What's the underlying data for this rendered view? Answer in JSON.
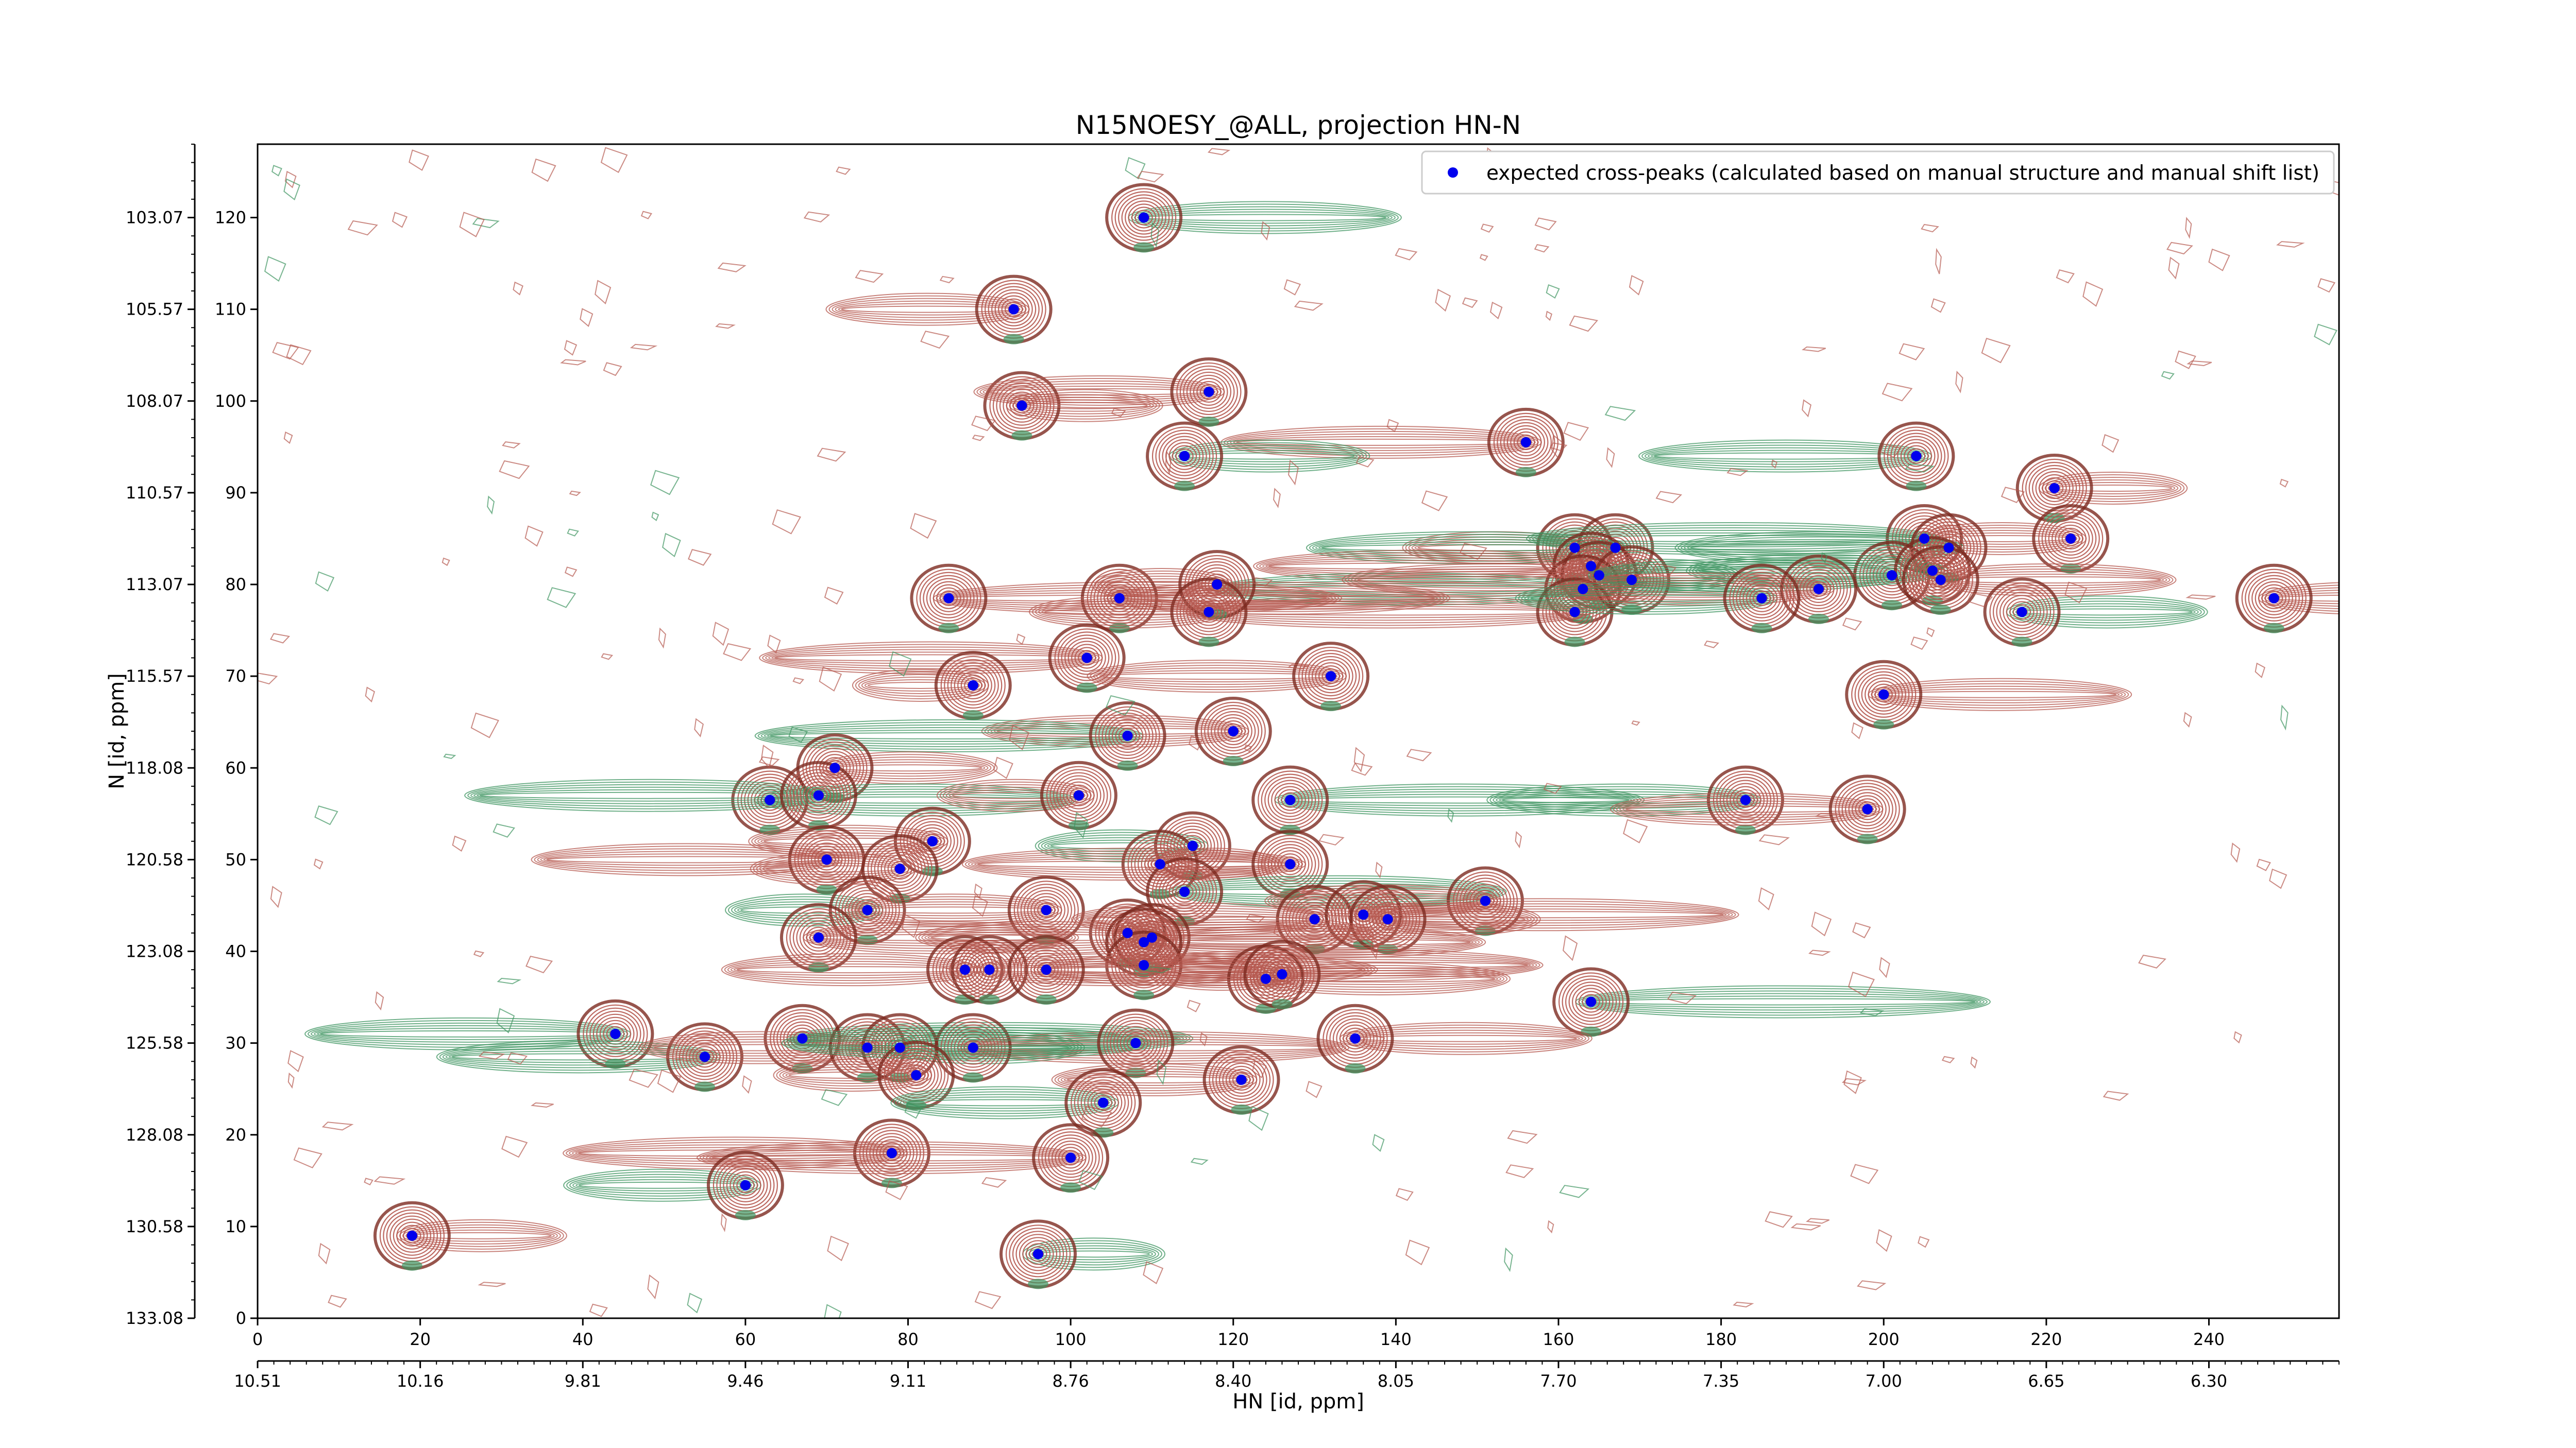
{
  "chart_data": {
    "type": "scatter",
    "title": "N15NOESY_@ALL, projection HN-N",
    "xlabel": "HN [id, ppm]",
    "ylabel": "N [id, ppm]",
    "x_index_range": [
      0,
      256
    ],
    "y_index_range": [
      0,
      128
    ],
    "x_index_ticks": [
      "0",
      "20",
      "40",
      "60",
      "80",
      "100",
      "120",
      "140",
      "160",
      "180",
      "200",
      "220",
      "240"
    ],
    "x_ppm_ticks": [
      "10.51",
      "10.16",
      "9.81",
      "9.46",
      "9.11",
      "8.76",
      "8.40",
      "8.05",
      "7.70",
      "7.35",
      "7.00",
      "6.65",
      "6.30"
    ],
    "y_index_ticks": [
      "0",
      "10",
      "20",
      "30",
      "40",
      "50",
      "60",
      "70",
      "80",
      "90",
      "100",
      "110",
      "120"
    ],
    "y_ppm_ticks": [
      "133.08",
      "130.58",
      "128.08",
      "125.58",
      "123.08",
      "120.58",
      "118.08",
      "115.57",
      "113.07",
      "110.57",
      "108.07",
      "105.57",
      "103.07"
    ],
    "legend": {
      "placement": "top-right",
      "label": "expected cross-peaks (calculated based on manual structure and manual shift list)"
    },
    "colors": {
      "expected_peak": "#0000ee",
      "positive_contour": "#b5584f",
      "negative_contour": "#3d9460"
    },
    "series": [
      {
        "name": "expected cross-peaks (calculated based on manual structure and manual shift list)",
        "points": [
          [
            109,
            120
          ],
          [
            93,
            110
          ],
          [
            94,
            99.5
          ],
          [
            117,
            101
          ],
          [
            156,
            95.5
          ],
          [
            114,
            94
          ],
          [
            204,
            94
          ],
          [
            221,
            90.5
          ],
          [
            223,
            85
          ],
          [
            162,
            84
          ],
          [
            167,
            84
          ],
          [
            205,
            85
          ],
          [
            208,
            84
          ],
          [
            164,
            82
          ],
          [
            165,
            81
          ],
          [
            163,
            79.5
          ],
          [
            169,
            80.5
          ],
          [
            201,
            81
          ],
          [
            206,
            81.5
          ],
          [
            207,
            80.5
          ],
          [
            162,
            77
          ],
          [
            192,
            79.5
          ],
          [
            185,
            78.5
          ],
          [
            217,
            77
          ],
          [
            248,
            78.5
          ],
          [
            85,
            78.5
          ],
          [
            106,
            78.5
          ],
          [
            118,
            80
          ],
          [
            117,
            77
          ],
          [
            102,
            72
          ],
          [
            88,
            69
          ],
          [
            132,
            70
          ],
          [
            200,
            68
          ],
          [
            120,
            64
          ],
          [
            107,
            63.5
          ],
          [
            71,
            60
          ],
          [
            63,
            56.5
          ],
          [
            69,
            57
          ],
          [
            101,
            57
          ],
          [
            127,
            56.5
          ],
          [
            183,
            56.5
          ],
          [
            198,
            55.5
          ],
          [
            83,
            52
          ],
          [
            115,
            51.5
          ],
          [
            70,
            50
          ],
          [
            79,
            49
          ],
          [
            111,
            49.5
          ],
          [
            127,
            49.5
          ],
          [
            114,
            46.5
          ],
          [
            151,
            45.5
          ],
          [
            75,
            44.5
          ],
          [
            97,
            44.5
          ],
          [
            130,
            43.5
          ],
          [
            136,
            44
          ],
          [
            139,
            43.5
          ],
          [
            69,
            41.5
          ],
          [
            107,
            42
          ],
          [
            110,
            41.5
          ],
          [
            109,
            41
          ],
          [
            109,
            38.5
          ],
          [
            87,
            38
          ],
          [
            90,
            38
          ],
          [
            97,
            38
          ],
          [
            124,
            37
          ],
          [
            126,
            37.5
          ],
          [
            164,
            34.5
          ],
          [
            44,
            31
          ],
          [
            55,
            28.5
          ],
          [
            67,
            30.5
          ],
          [
            75,
            29.5
          ],
          [
            79,
            29.5
          ],
          [
            88,
            29.5
          ],
          [
            108,
            30
          ],
          [
            135,
            30.5
          ],
          [
            81,
            26.5
          ],
          [
            121,
            26
          ],
          [
            104,
            23.5
          ],
          [
            78,
            18
          ],
          [
            100,
            17.5
          ],
          [
            60,
            14.5
          ],
          [
            19,
            9
          ],
          [
            96,
            7
          ]
        ]
      }
    ]
  }
}
